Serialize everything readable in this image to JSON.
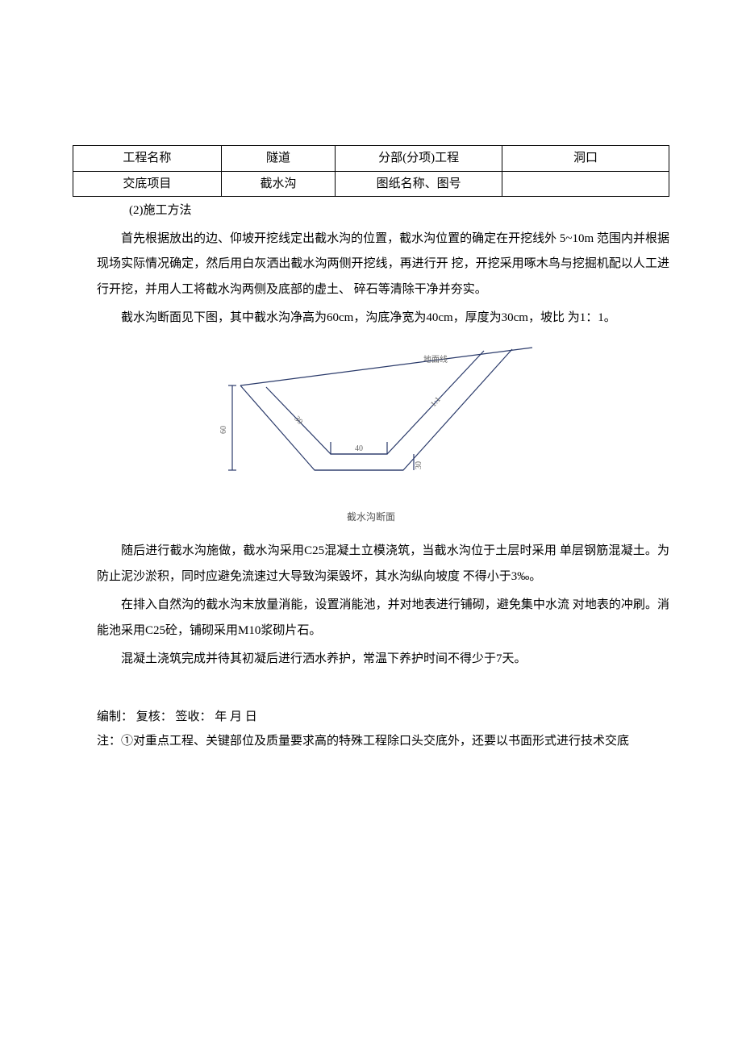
{
  "table": {
    "r1c1": "工程名称",
    "r1c2": "隧道",
    "r1c3": "分部(分项)工程",
    "r1c4": "洞口",
    "r2c1": "交底项目",
    "r2c2": "截水沟",
    "r2c3": "图纸名称、图号",
    "r2c4": ""
  },
  "section_label": "(2)施工方法",
  "para1": "首先根据放出的边、仰坡开挖线定出截水沟的位置，截水沟位置的确定在开挖线外 5~10m 范围内并根据现场实际情况确定，然后用白灰洒出截水沟两侧开挖线，再进行开 挖，开挖采用啄木鸟与挖掘机配以人工进行开挖，并用人工将截水沟两侧及底部的虚土、 碎石等清除干净并夯实。",
  "para2": "截水沟断面见下图，其中截水沟净高为60cm，沟底净宽为40cm，厚度为30cm，坡比 为1：1。",
  "diagram": {
    "caption": "截水沟断面",
    "dim_height": "60",
    "dim_width": "40",
    "dim_thick": "30",
    "dim_slope_len": "30",
    "slope_ratio": "1:1",
    "ground_label": "地面线",
    "stroke": "#2a3a6a",
    "stroke_width": 1.2,
    "text_color": "#666666",
    "text_size": 10,
    "bg": "#ffffff",
    "view_w": 440,
    "view_h": 200
  },
  "para3": "随后进行截水沟施做，截水沟采用C25混凝土立模浇筑，当截水沟位于土层时采用 单层钢筋混凝土。为防止泥沙淤积，同时应避免流速过大导致沟渠毁坏，其水沟纵向坡度 不得小于3‰。",
  "para4": "在排入自然沟的截水沟末放量消能，设置消能池，并对地表进行铺砌，避免集中水流 对地表的冲刷。消能池采用C25砼，铺砌采用M10浆砌片石。",
  "para5": "混凝土浇筑完成并待其初凝后进行洒水养护，常温下养护时间不得少于7天。",
  "footer_line1": "编制：   复核：   签收：   年  月  日",
  "footer_line2": "注：①对重点工程、关键部位及质量要求高的特殊工程除口头交底外，还要以书面形式进行技术交底"
}
